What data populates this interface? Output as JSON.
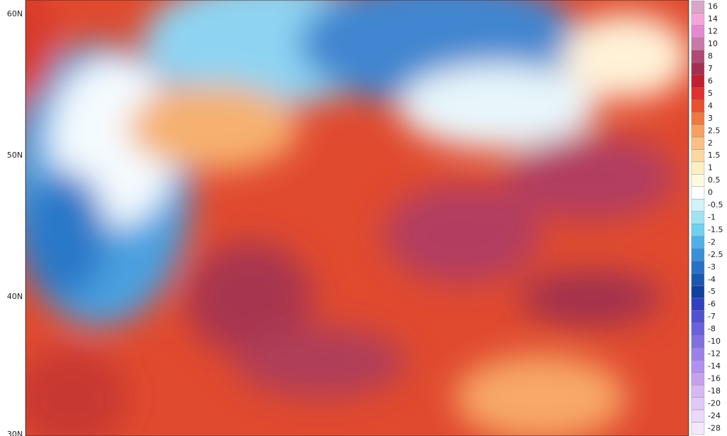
{
  "map": {
    "latitude_labels": [
      "60N",
      "50N",
      "40N",
      "30N"
    ],
    "legend": {
      "labels": [
        "16",
        "14",
        "12",
        "10",
        "8",
        "7",
        "6",
        "5",
        "4",
        "3",
        "2.5",
        "2",
        "1.5",
        "1",
        "0.5",
        "0",
        "-0.5",
        "-1",
        "-1.5",
        "-2",
        "-2.5",
        "-3",
        "-4",
        "-5",
        "-6",
        "-7",
        "-8",
        "-10",
        "-12",
        "-14",
        "-16",
        "-18",
        "-20",
        "-24",
        "-28"
      ],
      "colors": [
        "#d9a6c8",
        "#f4a6dc",
        "#e58ad0",
        "#c87aa8",
        "#b04a72",
        "#a3304e",
        "#c02030",
        "#e03030",
        "#e85030",
        "#f07840",
        "#f8a060",
        "#fac080",
        "#fcd8a0",
        "#fef0c0",
        "#fffbe0",
        "#ffffff",
        "#d0f4f8",
        "#a0e4f4",
        "#70d0f0",
        "#50b0e8",
        "#3890d8",
        "#2870c8",
        "#1858b0",
        "#1040a0",
        "#3040c0",
        "#5050d0",
        "#6a60e0",
        "#8070e0",
        "#9a80e8",
        "#b090f0",
        "#c8a0f0",
        "#d8b8f4",
        "#e0c8f8",
        "#ecd8fa",
        "#f4e8fc"
      ]
    }
  }
}
